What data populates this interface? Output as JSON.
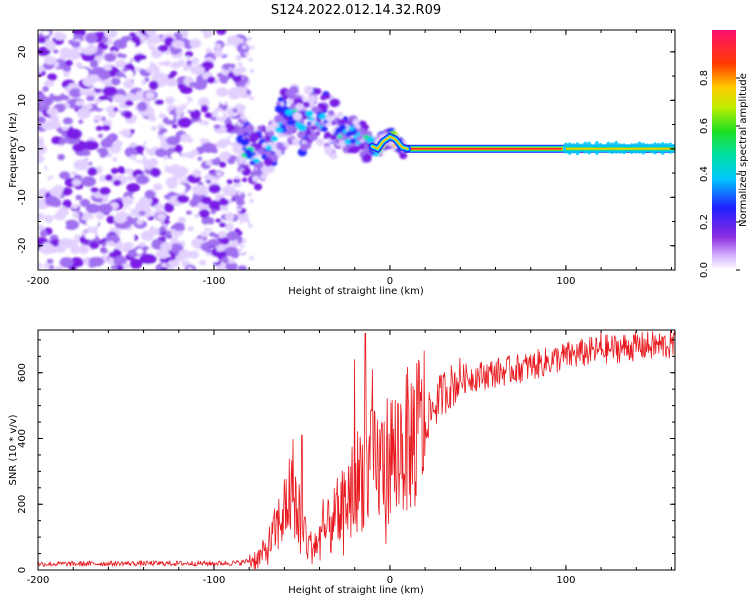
{
  "title": "S124.2022.012.14.32.R09",
  "chart_data": [
    {
      "type": "heatmap",
      "xlabel": "Height of straight line (km)",
      "ylabel": "Frequency (Hz)",
      "xlim": [
        -200,
        162
      ],
      "ylim": [
        -25,
        24.5
      ],
      "xticks": [
        -200,
        -100,
        0,
        100
      ],
      "yticks": [
        -20,
        -10,
        0,
        10,
        20
      ],
      "colorbar": {
        "label": "Normalized spectral amplitude",
        "range": [
          0,
          1
        ],
        "ticks": [
          "0.0",
          "0.2",
          "0.4",
          "0.6",
          "0.8"
        ],
        "colormap": "rainbow (white-violet-blue-cyan-green-yellow-red-pink)"
      },
      "ridge_frequency": [
        {
          "x": -90,
          "y": 0
        },
        {
          "x": -85,
          "y": 0.5
        },
        {
          "x": -80,
          "y": -1.5
        },
        {
          "x": -75,
          "y": -2
        },
        {
          "x": -70,
          "y": 0
        },
        {
          "x": -65,
          "y": 3
        },
        {
          "x": -60,
          "y": 6
        },
        {
          "x": -55,
          "y": 7
        },
        {
          "x": -50,
          "y": 5
        },
        {
          "x": -45,
          "y": 7
        },
        {
          "x": -40,
          "y": 6
        },
        {
          "x": -35,
          "y": 5
        },
        {
          "x": -30,
          "y": 4
        },
        {
          "x": -25,
          "y": 3
        },
        {
          "x": -20,
          "y": 2.5
        },
        {
          "x": -15,
          "y": 1.5
        },
        {
          "x": -10,
          "y": 0.5
        },
        {
          "x": -7,
          "y": 0
        },
        {
          "x": -4,
          "y": 1.5
        },
        {
          "x": 0,
          "y": 2.5
        },
        {
          "x": 3,
          "y": 2
        },
        {
          "x": 7,
          "y": 0.3
        },
        {
          "x": 10,
          "y": 0
        },
        {
          "x": 162,
          "y": 0
        }
      ]
    },
    {
      "type": "line",
      "xlabel": "Height of straight line (km)",
      "ylabel": "SNR (10 * v/v)",
      "xlim": [
        -200,
        162
      ],
      "ylim": [
        0,
        730
      ],
      "xticks": [
        -200,
        -100,
        0,
        100
      ],
      "yticks": [
        0,
        200,
        400,
        600
      ],
      "series": [
        {
          "color": "#e8191e",
          "points": [
            {
              "x": -200,
              "y": 18
            },
            {
              "x": -150,
              "y": 20
            },
            {
              "x": -100,
              "y": 20
            },
            {
              "x": -85,
              "y": 22
            },
            {
              "x": -75,
              "y": 35
            },
            {
              "x": -70,
              "y": 60
            },
            {
              "x": -65,
              "y": 120
            },
            {
              "x": -60,
              "y": 180
            },
            {
              "x": -55,
              "y": 260
            },
            {
              "x": -50,
              "y": 140
            },
            {
              "x": -45,
              "y": 70
            },
            {
              "x": -40,
              "y": 90
            },
            {
              "x": -35,
              "y": 130
            },
            {
              "x": -30,
              "y": 170
            },
            {
              "x": -25,
              "y": 210
            },
            {
              "x": -20,
              "y": 260
            },
            {
              "x": -15,
              "y": 300
            },
            {
              "x": -10,
              "y": 310
            },
            {
              "x": -5,
              "y": 320
            },
            {
              "x": 0,
              "y": 350
            },
            {
              "x": 10,
              "y": 390
            },
            {
              "x": 20,
              "y": 450
            },
            {
              "x": 30,
              "y": 540
            },
            {
              "x": 40,
              "y": 580
            },
            {
              "x": 60,
              "y": 600
            },
            {
              "x": 80,
              "y": 620
            },
            {
              "x": 100,
              "y": 650
            },
            {
              "x": 120,
              "y": 670
            },
            {
              "x": 140,
              "y": 680
            },
            {
              "x": 162,
              "y": 685
            }
          ],
          "spikes": [
            {
              "x": -50,
              "y": 410
            },
            {
              "x": -38,
              "y": 215
            },
            {
              "x": -20,
              "y": 640
            },
            {
              "x": -14,
              "y": 720
            },
            {
              "x": -10,
              "y": 610
            },
            {
              "x": 11,
              "y": 230
            },
            {
              "x": 120,
              "y": 725
            }
          ]
        }
      ]
    }
  ]
}
